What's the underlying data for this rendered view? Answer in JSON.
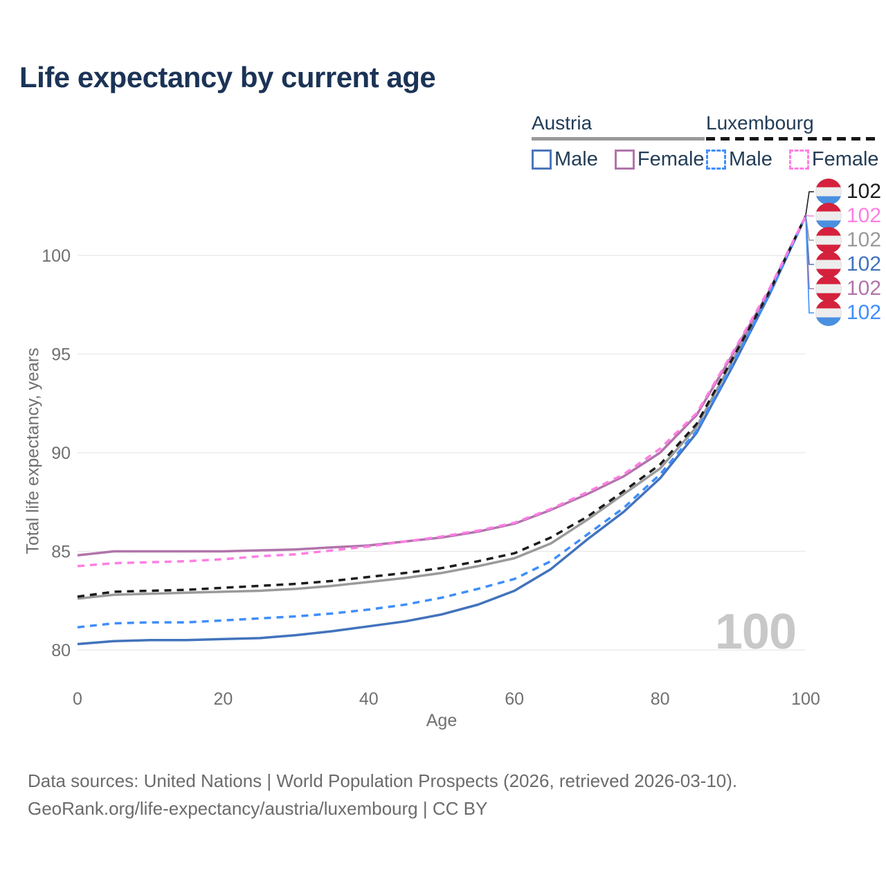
{
  "title": "Life expectancy by current age",
  "legend": {
    "groups": [
      {
        "label": "Austria",
        "line_style": "solid",
        "line_color": "#999999",
        "items": [
          {
            "label": "Male",
            "color": "#4a77bd",
            "dashed": false
          },
          {
            "label": "Female",
            "color": "#b174aa",
            "dashed": false
          }
        ]
      },
      {
        "label": "Luxembourg",
        "line_style": "dashed",
        "line_color": "#161616",
        "items": [
          {
            "label": "Male",
            "color": "#3f8efc",
            "dashed": true
          },
          {
            "label": "Female",
            "color": "#ff7ee3",
            "dashed": true
          }
        ]
      }
    ]
  },
  "chart_data": {
    "type": "line",
    "title": "Life expectancy by current age",
    "xlabel": "Age",
    "ylabel": "Total life expectancy, years",
    "xlim": [
      0,
      100
    ],
    "ylim": [
      79.5,
      102.5
    ],
    "xticks": [
      0,
      20,
      40,
      60,
      80,
      100
    ],
    "yticks": [
      80,
      85,
      90,
      95,
      100
    ],
    "grid": "horizontal-only",
    "legend_position": "top-right",
    "x": [
      0,
      5,
      10,
      15,
      20,
      25,
      30,
      35,
      40,
      45,
      50,
      55,
      60,
      65,
      70,
      75,
      80,
      85,
      90,
      95,
      100
    ],
    "series": [
      {
        "name": "Austria Total",
        "country": "Austria",
        "group": "total",
        "color": "#9a9a9a",
        "dash": "solid",
        "values": [
          82.6,
          82.8,
          82.85,
          82.9,
          82.95,
          83.0,
          83.1,
          83.25,
          83.45,
          83.65,
          83.9,
          84.25,
          84.65,
          85.4,
          86.6,
          87.9,
          89.2,
          91.3,
          94.7,
          98.1,
          102
        ]
      },
      {
        "name": "Austria Male",
        "country": "Austria",
        "group": "male",
        "color": "#4273bd",
        "dash": "solid",
        "values": [
          80.3,
          80.45,
          80.5,
          80.5,
          80.55,
          80.6,
          80.75,
          80.95,
          81.2,
          81.45,
          81.8,
          82.3,
          83.0,
          84.1,
          85.6,
          87.0,
          88.7,
          91.0,
          94.4,
          98.0,
          102
        ]
      },
      {
        "name": "Austria Female",
        "country": "Austria",
        "group": "female",
        "color": "#b174aa",
        "dash": "solid",
        "values": [
          84.8,
          85.0,
          85.0,
          85.0,
          85.0,
          85.05,
          85.1,
          85.2,
          85.3,
          85.5,
          85.7,
          86.0,
          86.4,
          87.1,
          87.9,
          88.8,
          90.0,
          91.9,
          95.0,
          98.2,
          102
        ]
      },
      {
        "name": "Luxembourg Total",
        "country": "Luxembourg",
        "group": "total",
        "color": "#1c1c1c",
        "dash": "dashed",
        "values": [
          82.7,
          82.95,
          83.0,
          83.05,
          83.15,
          83.25,
          83.35,
          83.5,
          83.7,
          83.9,
          84.15,
          84.5,
          84.9,
          85.7,
          86.75,
          88.05,
          89.4,
          91.45,
          94.8,
          98.15,
          102
        ]
      },
      {
        "name": "Luxembourg Male",
        "country": "Luxembourg",
        "group": "male",
        "color": "#3f8efc",
        "dash": "dashed",
        "values": [
          81.15,
          81.35,
          81.4,
          81.4,
          81.5,
          81.6,
          81.7,
          81.85,
          82.05,
          82.3,
          82.65,
          83.1,
          83.6,
          84.5,
          85.85,
          87.2,
          88.9,
          91.1,
          94.5,
          98.0,
          102
        ]
      },
      {
        "name": "Luxembourg Female",
        "country": "Luxembourg",
        "group": "female",
        "color": "#ff7ee3",
        "dash": "dashed",
        "values": [
          84.25,
          84.4,
          84.45,
          84.5,
          84.6,
          84.75,
          84.85,
          85.05,
          85.25,
          85.5,
          85.75,
          86.05,
          86.45,
          87.15,
          88.0,
          88.9,
          90.2,
          92.0,
          95.1,
          98.3,
          102
        ]
      }
    ]
  },
  "end_labels": [
    {
      "value": "102",
      "color": "#1c1c1c",
      "flag": "luxembourg",
      "series": "Luxembourg Total"
    },
    {
      "value": "102",
      "color": "#ff7ee3",
      "flag": "luxembourg",
      "series": "Luxembourg Female"
    },
    {
      "value": "102",
      "color": "#9a9a9a",
      "flag": "austria",
      "series": "Austria Total"
    },
    {
      "value": "102",
      "color": "#4273bd",
      "flag": "austria",
      "series": "Austria Male"
    },
    {
      "value": "102",
      "color": "#b174aa",
      "flag": "austria",
      "series": "Austria Female"
    },
    {
      "value": "102",
      "color": "#3f8efc",
      "flag": "luxembourg",
      "series": "Luxembourg Male"
    }
  ],
  "flag_colors": {
    "austria": [
      "#d5213d",
      "#ededed",
      "#d5213d"
    ],
    "luxembourg": [
      "#d5213d",
      "#ededed",
      "#4a90e0"
    ]
  },
  "watermark": "100",
  "footer": {
    "line1": "Data sources: United Nations | World Population Prospects (2026, retrieved 2026-03-10).",
    "line2": "GeoRank.org/life-expectancy/austria/luxembourg | CC BY"
  }
}
